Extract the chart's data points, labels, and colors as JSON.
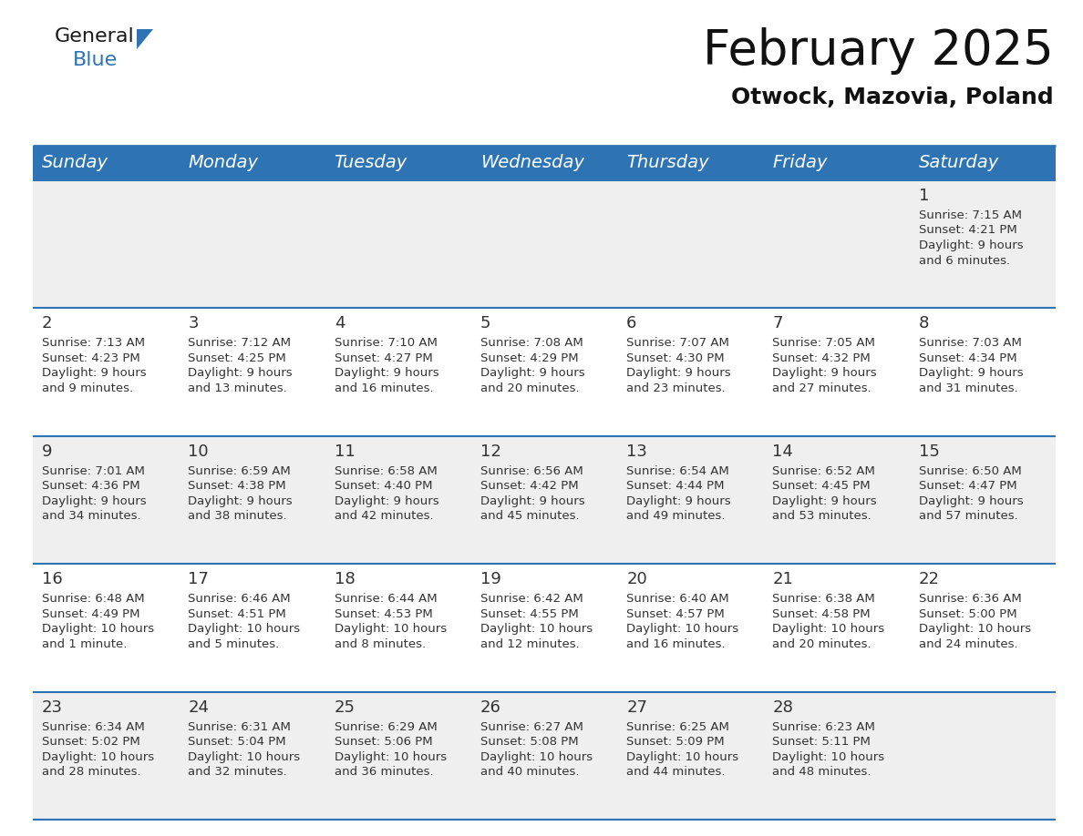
{
  "title": "February 2025",
  "subtitle": "Otwock, Mazovia, Poland",
  "header_bg": "#2e74b5",
  "header_text_color": "#ffffff",
  "day_names": [
    "Sunday",
    "Monday",
    "Tuesday",
    "Wednesday",
    "Thursday",
    "Friday",
    "Saturday"
  ],
  "title_fontsize": 38,
  "subtitle_fontsize": 18,
  "header_fontsize": 14,
  "cell_fontsize": 9.5,
  "day_num_fontsize": 13,
  "grid_line_color": "#2e74b5",
  "cell_bg_even": "#efefef",
  "cell_bg_odd": "#ffffff",
  "text_color": "#333333",
  "logo_general_color": "#1a1a1a",
  "logo_blue_color": "#2e74b5",
  "weeks": [
    [
      {
        "day": null,
        "info": ""
      },
      {
        "day": null,
        "info": ""
      },
      {
        "day": null,
        "info": ""
      },
      {
        "day": null,
        "info": ""
      },
      {
        "day": null,
        "info": ""
      },
      {
        "day": null,
        "info": ""
      },
      {
        "day": 1,
        "info": "Sunrise: 7:15 AM\nSunset: 4:21 PM\nDaylight: 9 hours\nand 6 minutes."
      }
    ],
    [
      {
        "day": 2,
        "info": "Sunrise: 7:13 AM\nSunset: 4:23 PM\nDaylight: 9 hours\nand 9 minutes."
      },
      {
        "day": 3,
        "info": "Sunrise: 7:12 AM\nSunset: 4:25 PM\nDaylight: 9 hours\nand 13 minutes."
      },
      {
        "day": 4,
        "info": "Sunrise: 7:10 AM\nSunset: 4:27 PM\nDaylight: 9 hours\nand 16 minutes."
      },
      {
        "day": 5,
        "info": "Sunrise: 7:08 AM\nSunset: 4:29 PM\nDaylight: 9 hours\nand 20 minutes."
      },
      {
        "day": 6,
        "info": "Sunrise: 7:07 AM\nSunset: 4:30 PM\nDaylight: 9 hours\nand 23 minutes."
      },
      {
        "day": 7,
        "info": "Sunrise: 7:05 AM\nSunset: 4:32 PM\nDaylight: 9 hours\nand 27 minutes."
      },
      {
        "day": 8,
        "info": "Sunrise: 7:03 AM\nSunset: 4:34 PM\nDaylight: 9 hours\nand 31 minutes."
      }
    ],
    [
      {
        "day": 9,
        "info": "Sunrise: 7:01 AM\nSunset: 4:36 PM\nDaylight: 9 hours\nand 34 minutes."
      },
      {
        "day": 10,
        "info": "Sunrise: 6:59 AM\nSunset: 4:38 PM\nDaylight: 9 hours\nand 38 minutes."
      },
      {
        "day": 11,
        "info": "Sunrise: 6:58 AM\nSunset: 4:40 PM\nDaylight: 9 hours\nand 42 minutes."
      },
      {
        "day": 12,
        "info": "Sunrise: 6:56 AM\nSunset: 4:42 PM\nDaylight: 9 hours\nand 45 minutes."
      },
      {
        "day": 13,
        "info": "Sunrise: 6:54 AM\nSunset: 4:44 PM\nDaylight: 9 hours\nand 49 minutes."
      },
      {
        "day": 14,
        "info": "Sunrise: 6:52 AM\nSunset: 4:45 PM\nDaylight: 9 hours\nand 53 minutes."
      },
      {
        "day": 15,
        "info": "Sunrise: 6:50 AM\nSunset: 4:47 PM\nDaylight: 9 hours\nand 57 minutes."
      }
    ],
    [
      {
        "day": 16,
        "info": "Sunrise: 6:48 AM\nSunset: 4:49 PM\nDaylight: 10 hours\nand 1 minute."
      },
      {
        "day": 17,
        "info": "Sunrise: 6:46 AM\nSunset: 4:51 PM\nDaylight: 10 hours\nand 5 minutes."
      },
      {
        "day": 18,
        "info": "Sunrise: 6:44 AM\nSunset: 4:53 PM\nDaylight: 10 hours\nand 8 minutes."
      },
      {
        "day": 19,
        "info": "Sunrise: 6:42 AM\nSunset: 4:55 PM\nDaylight: 10 hours\nand 12 minutes."
      },
      {
        "day": 20,
        "info": "Sunrise: 6:40 AM\nSunset: 4:57 PM\nDaylight: 10 hours\nand 16 minutes."
      },
      {
        "day": 21,
        "info": "Sunrise: 6:38 AM\nSunset: 4:58 PM\nDaylight: 10 hours\nand 20 minutes."
      },
      {
        "day": 22,
        "info": "Sunrise: 6:36 AM\nSunset: 5:00 PM\nDaylight: 10 hours\nand 24 minutes."
      }
    ],
    [
      {
        "day": 23,
        "info": "Sunrise: 6:34 AM\nSunset: 5:02 PM\nDaylight: 10 hours\nand 28 minutes."
      },
      {
        "day": 24,
        "info": "Sunrise: 6:31 AM\nSunset: 5:04 PM\nDaylight: 10 hours\nand 32 minutes."
      },
      {
        "day": 25,
        "info": "Sunrise: 6:29 AM\nSunset: 5:06 PM\nDaylight: 10 hours\nand 36 minutes."
      },
      {
        "day": 26,
        "info": "Sunrise: 6:27 AM\nSunset: 5:08 PM\nDaylight: 10 hours\nand 40 minutes."
      },
      {
        "day": 27,
        "info": "Sunrise: 6:25 AM\nSunset: 5:09 PM\nDaylight: 10 hours\nand 44 minutes."
      },
      {
        "day": 28,
        "info": "Sunrise: 6:23 AM\nSunset: 5:11 PM\nDaylight: 10 hours\nand 48 minutes."
      },
      {
        "day": null,
        "info": ""
      }
    ]
  ]
}
